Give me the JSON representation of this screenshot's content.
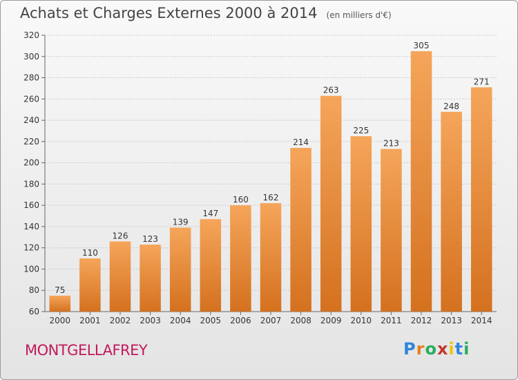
{
  "title": "Achats et Charges Externes 2000 à 2014",
  "subtitle": "(en milliers d'€)",
  "commune": "MONTGELLAFREY",
  "logo": {
    "letters": [
      "P",
      "r",
      "o",
      "x",
      "i",
      "t",
      "i"
    ],
    "colors": [
      "#2e86de",
      "#e67e22",
      "#27ae60",
      "#c0392b",
      "#f1c40f",
      "#2e86de",
      "#27ae60"
    ]
  },
  "colors": {
    "bar_top": "#f5a55a",
    "bar_bottom": "#d4711f",
    "commune": "#c2185b"
  },
  "chart_data": {
    "type": "bar",
    "title": "Achats et Charges Externes 2000 à 2014",
    "subtitle": "(en milliers d'€)",
    "categories": [
      "2000",
      "2001",
      "2002",
      "2003",
      "2004",
      "2005",
      "2006",
      "2007",
      "2008",
      "2009",
      "2010",
      "2011",
      "2012",
      "2013",
      "2014"
    ],
    "values": [
      75,
      110,
      126,
      123,
      139,
      147,
      160,
      162,
      214,
      263,
      225,
      213,
      305,
      248,
      271
    ],
    "ylim": [
      60,
      320
    ],
    "yticks": [
      60,
      80,
      100,
      120,
      140,
      160,
      180,
      200,
      220,
      240,
      260,
      280,
      300,
      320
    ],
    "grid": true,
    "data_labels": true
  }
}
